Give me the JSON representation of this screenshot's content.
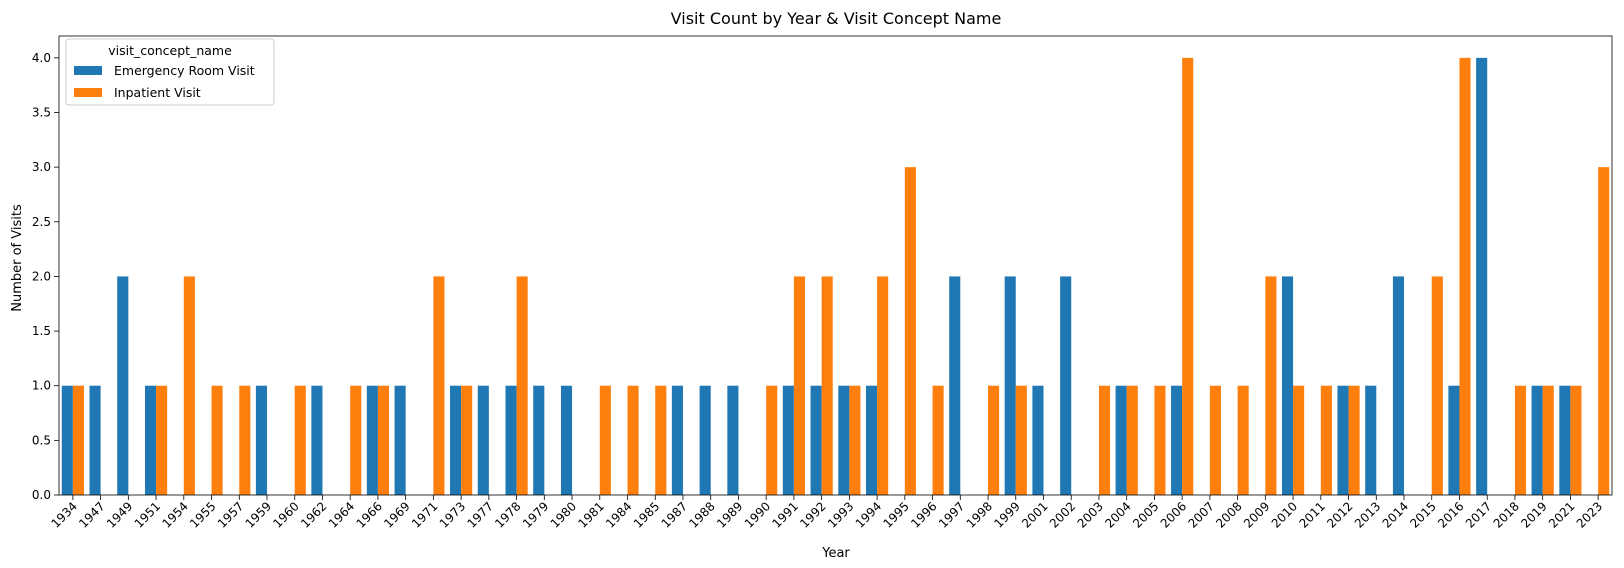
{
  "chart_data": {
    "type": "bar",
    "title": "Visit Count by Year & Visit Concept Name",
    "xlabel": "Year",
    "ylabel": "Number of Visits",
    "ylim": [
      0,
      4.2
    ],
    "yticks": [
      "0.0",
      "0.5",
      "1.0",
      "1.5",
      "2.0",
      "2.5",
      "3.0",
      "3.5",
      "4.0"
    ],
    "ytick_values": [
      0,
      0.5,
      1,
      1.5,
      2,
      2.5,
      3,
      3.5,
      4
    ],
    "grid": false,
    "legend": {
      "title": "visit_concept_name",
      "placement": "upper-left"
    },
    "categories": [
      "1934",
      "1947",
      "1949",
      "1951",
      "1954",
      "1955",
      "1957",
      "1959",
      "1960",
      "1962",
      "1964",
      "1966",
      "1969",
      "1971",
      "1973",
      "1977",
      "1978",
      "1979",
      "1980",
      "1981",
      "1984",
      "1985",
      "1987",
      "1988",
      "1989",
      "1990",
      "1991",
      "1992",
      "1993",
      "1994",
      "1995",
      "1996",
      "1997",
      "1998",
      "1999",
      "2001",
      "2002",
      "2003",
      "2004",
      "2005",
      "2006",
      "2007",
      "2008",
      "2009",
      "2010",
      "2011",
      "2012",
      "2013",
      "2014",
      "2015",
      "2016",
      "2017",
      "2018",
      "2019",
      "2021",
      "2023"
    ],
    "series": [
      {
        "name": "Emergency Room Visit",
        "color": "#1f77b4",
        "values": [
          1,
          1,
          2,
          1,
          0,
          0,
          0,
          1,
          0,
          1,
          0,
          1,
          1,
          0,
          1,
          1,
          1,
          1,
          1,
          0,
          0,
          0,
          1,
          1,
          1,
          0,
          1,
          1,
          1,
          1,
          0,
          0,
          2,
          0,
          2,
          1,
          2,
          0,
          1,
          0,
          1,
          0,
          0,
          0,
          2,
          0,
          1,
          1,
          2,
          0,
          1,
          4,
          0,
          1,
          1,
          0
        ]
      },
      {
        "name": "Inpatient Visit",
        "color": "#ff7f0e",
        "values": [
          1,
          0,
          0,
          1,
          2,
          1,
          1,
          0,
          1,
          0,
          1,
          1,
          0,
          2,
          1,
          0,
          2,
          0,
          0,
          1,
          1,
          1,
          0,
          0,
          0,
          1,
          2,
          2,
          1,
          2,
          3,
          1,
          0,
          1,
          1,
          0,
          0,
          1,
          1,
          1,
          4,
          1,
          1,
          2,
          1,
          1,
          1,
          0,
          0,
          2,
          4,
          0,
          1,
          1,
          1,
          3
        ]
      }
    ]
  }
}
